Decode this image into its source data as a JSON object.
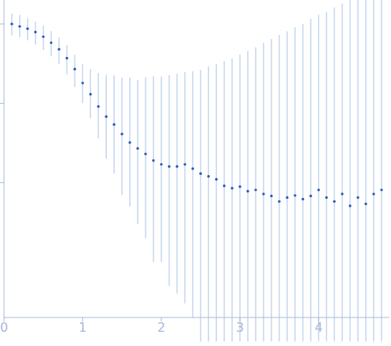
{
  "chart_data": {
    "type": "scatter",
    "log": "y",
    "tick_labels": "x",
    "marker": "circle",
    "color": "#2e5cb8",
    "xlim": [
      0,
      4.9
    ],
    "ylim": [
      0.0002,
      2
    ],
    "xticks": [
      0,
      1,
      2,
      3,
      4
    ],
    "yticks": [
      0.01,
      0.1,
      1
    ],
    "x": [
      0.1,
      0.2,
      0.3,
      0.4,
      0.5,
      0.6,
      0.7,
      0.8,
      0.9,
      1.0,
      1.1,
      1.2,
      1.3,
      1.4,
      1.5,
      1.6,
      1.7,
      1.8,
      1.9,
      2.0,
      2.1,
      2.2,
      2.3,
      2.4,
      2.5,
      2.6,
      2.7,
      2.8,
      2.9,
      3.0,
      3.1,
      3.2,
      3.3,
      3.4,
      3.5,
      3.6,
      3.7,
      3.8,
      3.9,
      4.0,
      4.1,
      4.2,
      4.3,
      4.4,
      4.5,
      4.6,
      4.7,
      4.8
    ],
    "values": [
      1.0,
      0.93,
      0.87,
      0.79,
      0.69,
      0.58,
      0.48,
      0.37,
      0.27,
      0.18,
      0.13,
      0.091,
      0.068,
      0.054,
      0.041,
      0.032,
      0.027,
      0.023,
      0.019,
      0.017,
      0.016,
      0.016,
      0.017,
      0.015,
      0.013,
      0.012,
      0.011,
      0.0091,
      0.0085,
      0.0089,
      0.0078,
      0.0081,
      0.0072,
      0.0068,
      0.0058,
      0.0065,
      0.0069,
      0.0062,
      0.0068,
      0.0081,
      0.0065,
      0.0058,
      0.0072,
      0.0051,
      0.0065,
      0.0054,
      0.0072,
      0.0081
    ],
    "errors_low": [
      0.28,
      0.25,
      0.25,
      0.24,
      0.22,
      0.19,
      0.17,
      0.14,
      0.11,
      0.08,
      0.065,
      0.055,
      0.048,
      0.041,
      0.034,
      0.027,
      0.024,
      0.021,
      0.018,
      0.016,
      0.0155,
      0.0156,
      0.0167,
      0.0148,
      0.0129,
      0.0119,
      0.0109,
      0.009,
      0.0084,
      0.0088,
      0.0077,
      0.008,
      0.0071,
      0.0067,
      0.0057,
      0.0064,
      0.0068,
      0.0061,
      0.0067,
      0.008,
      0.0064,
      0.0057,
      0.0071,
      0.005,
      0.0064,
      0.0053,
      0.0071,
      0.008
    ],
    "errors_high": [
      0.35,
      0.36,
      0.3,
      0.28,
      0.26,
      0.23,
      0.2,
      0.17,
      0.14,
      0.13,
      0.14,
      0.15,
      0.16,
      0.17,
      0.17,
      0.18,
      0.17,
      0.19,
      0.2,
      0.2,
      0.21,
      0.22,
      0.23,
      0.24,
      0.25,
      0.28,
      0.3,
      0.33,
      0.36,
      0.4,
      0.45,
      0.5,
      0.57,
      0.64,
      0.72,
      0.8,
      0.9,
      1.0,
      1.15,
      1.3,
      1.4,
      1.6,
      1.8,
      2.0,
      2.0,
      2.1,
      2.2,
      2.3
    ]
  }
}
